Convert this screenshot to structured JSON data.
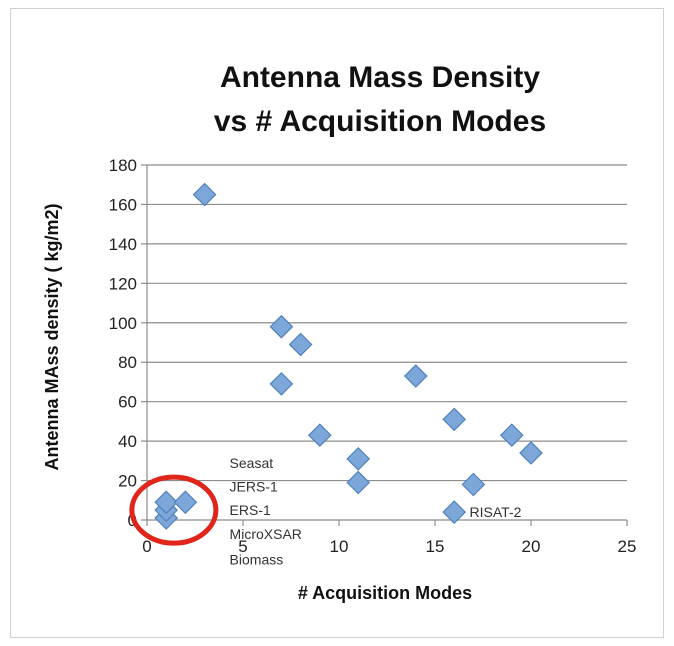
{
  "chart_data": {
    "type": "scatter",
    "title": [
      "Antenna Mass Density",
      "vs # Acquisition Modes"
    ],
    "xlabel": "# Acquisition Modes",
    "ylabel": "Antenna MAss density ( kg/m2)",
    "xlim": [
      0,
      25
    ],
    "ylim": [
      0,
      180
    ],
    "x_ticks": [
      0,
      5,
      10,
      15,
      20,
      25
    ],
    "y_ticks": [
      0,
      20,
      40,
      60,
      80,
      100,
      120,
      140,
      160,
      180
    ],
    "grid": "horizontal",
    "legend": "none",
    "marker": "diamond",
    "color": "#7da7d9",
    "stroke_color": "#4f81bd",
    "points": [
      {
        "x": 1,
        "y": 1
      },
      {
        "x": 1,
        "y": 5
      },
      {
        "x": 1,
        "y": 9
      },
      {
        "x": 2,
        "y": 9
      },
      {
        "x": 3,
        "y": 165
      },
      {
        "x": 7,
        "y": 98
      },
      {
        "x": 8,
        "y": 89
      },
      {
        "x": 7,
        "y": 69
      },
      {
        "x": 9,
        "y": 43
      },
      {
        "x": 11,
        "y": 31
      },
      {
        "x": 11,
        "y": 19
      },
      {
        "x": 14,
        "y": 73
      },
      {
        "x": 16,
        "y": 51
      },
      {
        "x": 16,
        "y": 4
      },
      {
        "x": 17,
        "y": 18
      },
      {
        "x": 19,
        "y": 43
      },
      {
        "x": 20,
        "y": 34
      }
    ],
    "annotations": [
      {
        "text": "Seasat",
        "x": 4.3,
        "y": 29
      },
      {
        "text": "JERS-1",
        "x": 4.3,
        "y": 17
      },
      {
        "text": "ERS-1",
        "x": 4.3,
        "y": 5
      },
      {
        "text": "MicroXSAR",
        "x": 4.3,
        "y": -7
      },
      {
        "text": "Biomass",
        "x": 4.3,
        "y": -20
      },
      {
        "text": "RISAT-2",
        "x": 16.8,
        "y": 4
      }
    ],
    "highlight_circle": {
      "x": 1.4,
      "y": 5,
      "color": "#e0251b"
    }
  }
}
